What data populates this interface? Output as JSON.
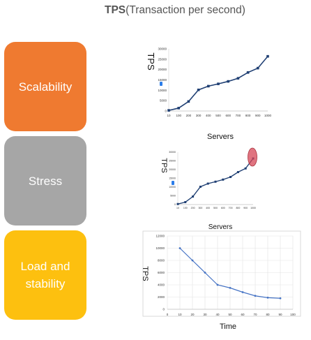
{
  "header": {
    "bold": "TPS",
    "rest": "(Transaction per second)"
  },
  "categories": [
    {
      "label": "Scalability",
      "color": "#ef7a30"
    },
    {
      "label": "Stress",
      "color": "#a6a6a6"
    },
    {
      "label": "Load and stability",
      "color": "#fdc00f"
    }
  ],
  "chart_data": [
    {
      "type": "line",
      "title": "",
      "xlabel": "Servers",
      "ylabel": "TPS",
      "x": [
        10,
        100,
        200,
        300,
        400,
        500,
        600,
        700,
        800,
        900,
        1000
      ],
      "series": [
        {
          "values": [
            300,
            1400,
            4600,
            10200,
            12000,
            13100,
            14300,
            15800,
            18600,
            20700,
            26400
          ]
        }
      ],
      "x_ticks": [
        "10",
        "100",
        "200",
        "300",
        "400",
        "500",
        "600",
        "700",
        "800",
        "900",
        "1000"
      ],
      "y_ticks": [
        "0",
        "5000",
        "10000",
        "15000",
        "20000",
        "25000",
        "30000"
      ],
      "ylim": [
        0,
        30000
      ],
      "grid": false,
      "line_color": "#1f3f73"
    },
    {
      "type": "line",
      "title": "",
      "xlabel": "Servers",
      "ylabel": "TPS",
      "x": [
        10,
        100,
        200,
        300,
        400,
        500,
        600,
        700,
        800,
        900,
        1000
      ],
      "series": [
        {
          "values": [
            300,
            1400,
            4600,
            10200,
            12000,
            13100,
            14300,
            15800,
            18600,
            20700,
            26400
          ]
        }
      ],
      "x_ticks": [
        "10",
        "100",
        "200",
        "300",
        "400",
        "500",
        "600",
        "700",
        "800",
        "900",
        "1000"
      ],
      "y_ticks": [
        "0",
        "5000",
        "10000",
        "15000",
        "20000",
        "25000",
        "30000"
      ],
      "ylim": [
        0,
        30000
      ],
      "grid": false,
      "line_color": "#1f3f73",
      "highlight": {
        "x": 1000,
        "y": 26400,
        "color": "#d64556"
      }
    },
    {
      "type": "line",
      "title": "",
      "xlabel": "Time",
      "ylabel": "TPS",
      "x": [
        10,
        20,
        30,
        40,
        50,
        60,
        70,
        80,
        90
      ],
      "series": [
        {
          "values": [
            10000,
            8000,
            6000,
            4000,
            3500,
            2800,
            2200,
            1900,
            1800
          ]
        }
      ],
      "x_ticks": [
        "0",
        "10",
        "20",
        "30",
        "40",
        "50",
        "60",
        "70",
        "80",
        "90",
        "100"
      ],
      "y_ticks": [
        "0",
        "2000",
        "4000",
        "6000",
        "8000",
        "10000",
        "12000"
      ],
      "xlim": [
        0,
        100
      ],
      "ylim": [
        0,
        12000
      ],
      "grid": true,
      "line_color": "#4472c4"
    }
  ]
}
